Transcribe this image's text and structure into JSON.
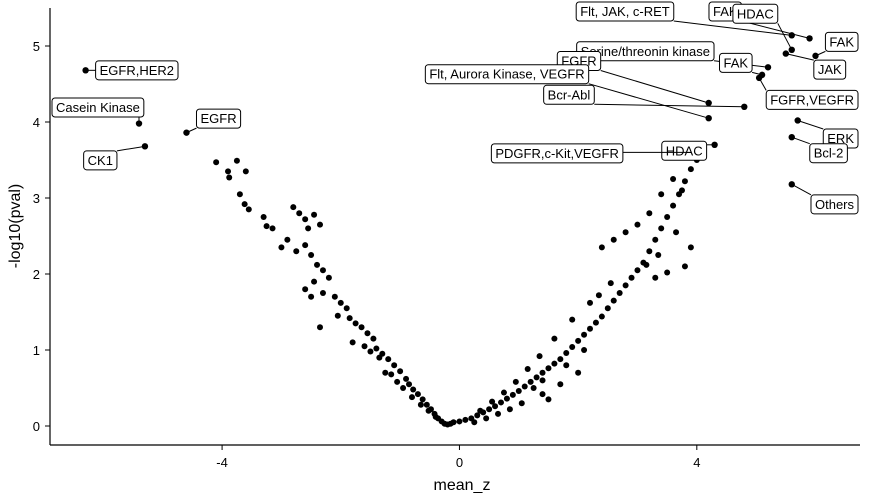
{
  "chart_data": {
    "type": "scatter",
    "title": "",
    "xlabel": "mean_z",
    "ylabel": "-log10(pval)",
    "xlim": [
      -6.9,
      6.75
    ],
    "ylim": [
      -0.25,
      5.5
    ],
    "x_ticks": [
      -4,
      0,
      4
    ],
    "y_ticks": [
      0,
      1,
      2,
      3,
      4,
      5
    ],
    "grid": false,
    "legend": "none",
    "point_color": "#000000",
    "labeled_points": [
      {
        "label": "EGFR,HER2",
        "x": -6.3,
        "y": 4.68
      },
      {
        "label": "Casein Kinase",
        "x": -5.4,
        "y": 3.98
      },
      {
        "label": "CK1",
        "x": -5.3,
        "y": 3.68
      },
      {
        "label": "EGFR",
        "x": -4.6,
        "y": 3.86
      },
      {
        "label": "Flt, JAK, c-RET",
        "x": 5.6,
        "y": 5.14
      },
      {
        "label": "FAK",
        "x": 5.9,
        "y": 5.1
      },
      {
        "label": "HDAC",
        "x": 5.6,
        "y": 4.95
      },
      {
        "label": "FAK",
        "x": 6.0,
        "y": 4.87
      },
      {
        "label": "JAK",
        "x": 5.5,
        "y": 4.9
      },
      {
        "label": "Serine/threonin kinase",
        "x": 5.2,
        "y": 4.72
      },
      {
        "label": "FAK",
        "x": 5.1,
        "y": 4.62
      },
      {
        "label": "FGFR,VEGFR",
        "x": 5.05,
        "y": 4.58
      },
      {
        "label": "Bcr-Abl",
        "x": 4.8,
        "y": 4.2
      },
      {
        "label": "FGFR",
        "x": 4.2,
        "y": 4.25
      },
      {
        "label": "ERK",
        "x": 5.7,
        "y": 4.02
      },
      {
        "label": "Flt, Aurora Kinase, VEGFR",
        "x": 4.2,
        "y": 4.05
      },
      {
        "label": "HDAC",
        "x": 4.3,
        "y": 3.7
      },
      {
        "label": "Bcl-2",
        "x": 5.6,
        "y": 3.8
      },
      {
        "label": "PDGFR,c-Kit,VEGFR",
        "x": 3.9,
        "y": 3.6
      },
      {
        "label": "Others",
        "x": 5.6,
        "y": 3.18
      }
    ],
    "points": [
      [
        -4.1,
        3.47
      ],
      [
        -3.9,
        3.35
      ],
      [
        -3.88,
        3.27
      ],
      [
        -3.75,
        3.49
      ],
      [
        -3.6,
        3.35
      ],
      [
        -3.7,
        3.05
      ],
      [
        -3.62,
        2.92
      ],
      [
        -3.55,
        2.85
      ],
      [
        -3.3,
        2.75
      ],
      [
        -3.25,
        2.63
      ],
      [
        -3.15,
        2.6
      ],
      [
        -2.8,
        2.88
      ],
      [
        -2.7,
        2.8
      ],
      [
        -2.6,
        2.72
      ],
      [
        -2.55,
        2.6
      ],
      [
        -2.45,
        2.78
      ],
      [
        -2.35,
        2.65
      ],
      [
        -2.9,
        2.45
      ],
      [
        -3.0,
        2.35
      ],
      [
        -2.75,
        2.3
      ],
      [
        -2.6,
        2.38
      ],
      [
        -2.5,
        2.25
      ],
      [
        -2.4,
        2.12
      ],
      [
        -2.3,
        2.05
      ],
      [
        -2.2,
        1.95
      ],
      [
        -2.45,
        1.9
      ],
      [
        -2.6,
        1.8
      ],
      [
        -2.5,
        1.7
      ],
      [
        -2.3,
        1.75
      ],
      [
        -2.1,
        1.7
      ],
      [
        -2.0,
        1.62
      ],
      [
        -1.9,
        1.55
      ],
      [
        -2.05,
        1.45
      ],
      [
        -1.85,
        1.42
      ],
      [
        -1.75,
        1.35
      ],
      [
        -1.65,
        1.3
      ],
      [
        -1.55,
        1.22
      ],
      [
        -1.45,
        1.15
      ],
      [
        -1.6,
        1.05
      ],
      [
        -1.4,
        1.02
      ],
      [
        -1.3,
        0.95
      ],
      [
        -1.2,
        0.88
      ],
      [
        -1.1,
        0.8
      ],
      [
        -1.0,
        0.72
      ],
      [
        -0.9,
        0.62
      ],
      [
        -0.85,
        0.55
      ],
      [
        -0.78,
        0.48
      ],
      [
        -0.7,
        0.42
      ],
      [
        -0.62,
        0.35
      ],
      [
        -0.55,
        0.28
      ],
      [
        -0.48,
        0.22
      ],
      [
        -0.42,
        0.16
      ],
      [
        -0.36,
        0.1
      ],
      [
        -0.3,
        0.06
      ],
      [
        -0.25,
        0.03
      ],
      [
        -0.2,
        0.02
      ],
      [
        -0.15,
        0.03
      ],
      [
        -0.1,
        0.05
      ],
      [
        -2.35,
        1.3
      ],
      [
        -1.8,
        1.1
      ],
      [
        -1.5,
        0.98
      ],
      [
        -1.25,
        0.7
      ],
      [
        -1.05,
        0.58
      ],
      [
        -1.35,
        0.9
      ],
      [
        -1.15,
        0.68
      ],
      [
        -0.95,
        0.5
      ],
      [
        -0.8,
        0.38
      ],
      [
        -0.65,
        0.28
      ],
      [
        -0.52,
        0.2
      ],
      [
        -0.4,
        0.12
      ],
      [
        0.0,
        0.06
      ],
      [
        0.1,
        0.08
      ],
      [
        0.2,
        0.1
      ],
      [
        0.3,
        0.14
      ],
      [
        0.4,
        0.18
      ],
      [
        0.5,
        0.22
      ],
      [
        0.6,
        0.26
      ],
      [
        0.7,
        0.31
      ],
      [
        0.8,
        0.36
      ],
      [
        0.9,
        0.41
      ],
      [
        1.0,
        0.46
      ],
      [
        1.1,
        0.52
      ],
      [
        1.2,
        0.58
      ],
      [
        1.3,
        0.64
      ],
      [
        1.4,
        0.7
      ],
      [
        1.5,
        0.76
      ],
      [
        1.6,
        0.82
      ],
      [
        1.7,
        0.88
      ],
      [
        1.8,
        0.96
      ],
      [
        1.9,
        1.04
      ],
      [
        2.0,
        1.12
      ],
      [
        2.1,
        1.2
      ],
      [
        2.2,
        1.28
      ],
      [
        2.3,
        1.36
      ],
      [
        2.4,
        1.44
      ],
      [
        2.5,
        1.55
      ],
      [
        2.6,
        1.65
      ],
      [
        2.7,
        1.75
      ],
      [
        2.8,
        1.85
      ],
      [
        2.9,
        1.95
      ],
      [
        3.0,
        2.05
      ],
      [
        3.1,
        2.15
      ],
      [
        3.2,
        2.3
      ],
      [
        3.3,
        2.45
      ],
      [
        3.4,
        2.6
      ],
      [
        3.5,
        2.75
      ],
      [
        3.6,
        2.9
      ],
      [
        3.7,
        3.05
      ],
      [
        3.8,
        3.22
      ],
      [
        3.9,
        3.38
      ],
      [
        4.0,
        3.5
      ],
      [
        2.4,
        2.35
      ],
      [
        2.6,
        2.45
      ],
      [
        2.8,
        2.55
      ],
      [
        3.0,
        2.65
      ],
      [
        3.2,
        2.8
      ],
      [
        3.4,
        3.05
      ],
      [
        3.6,
        3.25
      ],
      [
        3.15,
        2.12
      ],
      [
        3.3,
        1.95
      ],
      [
        3.5,
        2.02
      ],
      [
        3.35,
        2.25
      ],
      [
        3.65,
        2.55
      ],
      [
        3.8,
        2.1
      ],
      [
        3.9,
        2.35
      ],
      [
        3.75,
        3.1
      ],
      [
        2.2,
        1.62
      ],
      [
        2.35,
        1.72
      ],
      [
        2.55,
        1.88
      ],
      [
        1.9,
        1.4
      ],
      [
        1.6,
        1.15
      ],
      [
        1.35,
        0.92
      ],
      [
        1.15,
        0.75
      ],
      [
        0.95,
        0.58
      ],
      [
        0.75,
        0.44
      ],
      [
        0.55,
        0.32
      ],
      [
        0.35,
        0.2
      ],
      [
        1.4,
        0.42
      ],
      [
        1.7,
        0.55
      ],
      [
        2.0,
        0.7
      ],
      [
        1.05,
        0.3
      ],
      [
        0.65,
        0.16
      ],
      [
        1.4,
        0.6
      ],
      [
        1.8,
        0.8
      ],
      [
        2.1,
        1.0
      ],
      [
        1.5,
        0.35
      ],
      [
        1.25,
        0.5
      ],
      [
        0.85,
        0.22
      ],
      [
        0.45,
        0.1
      ],
      [
        0.25,
        0.05
      ]
    ]
  }
}
